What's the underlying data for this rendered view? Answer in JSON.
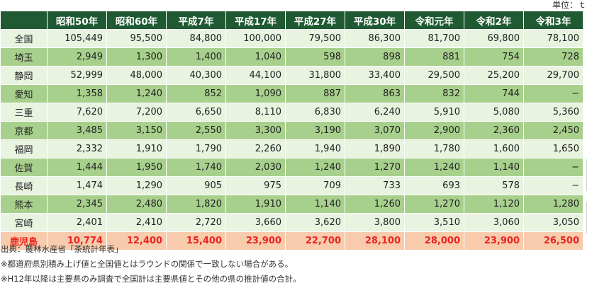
{
  "unit_label": "単位：ｔ",
  "table": {
    "columns": [
      "昭和50年",
      "昭和60年",
      "平成7年",
      "平成17年",
      "平成27年",
      "平成30年",
      "令和元年",
      "令和2年",
      "令和3年"
    ],
    "rows": [
      {
        "name": "全国",
        "values": [
          "105,449",
          "95,500",
          "84,800",
          "100,000",
          "79,500",
          "86,300",
          "81,700",
          "69,800",
          "78,100"
        ]
      },
      {
        "name": "埼玉",
        "values": [
          "2,949",
          "1,300",
          "1,400",
          "1,040",
          "598",
          "898",
          "881",
          "754",
          "728"
        ]
      },
      {
        "name": "静岡",
        "values": [
          "52,999",
          "48,000",
          "40,300",
          "44,100",
          "31,800",
          "33,400",
          "29,500",
          "25,200",
          "29,700"
        ]
      },
      {
        "name": "愛知",
        "values": [
          "1,358",
          "1,240",
          "852",
          "1,090",
          "887",
          "863",
          "832",
          "744",
          "−"
        ]
      },
      {
        "name": "三重",
        "values": [
          "7,620",
          "7,200",
          "6,650",
          "8,110",
          "6,830",
          "6,240",
          "5,910",
          "5,080",
          "5,360"
        ]
      },
      {
        "name": "京都",
        "values": [
          "3,485",
          "3,150",
          "2,550",
          "3,300",
          "3,190",
          "3,070",
          "2,900",
          "2,360",
          "2,450"
        ]
      },
      {
        "name": "福岡",
        "values": [
          "2,332",
          "1,910",
          "1,790",
          "2,260",
          "1,940",
          "1,890",
          "1,780",
          "1,600",
          "1,650"
        ]
      },
      {
        "name": "佐賀",
        "values": [
          "1,444",
          "1,950",
          "1,740",
          "2,030",
          "1,240",
          "1,270",
          "1,240",
          "1,140",
          "−"
        ]
      },
      {
        "name": "長崎",
        "values": [
          "1,474",
          "1,290",
          "905",
          "975",
          "709",
          "733",
          "693",
          "578",
          "−"
        ]
      },
      {
        "name": "熊本",
        "values": [
          "2,345",
          "2,480",
          "1,820",
          "1,910",
          "1,140",
          "1,260",
          "1,270",
          "1,120",
          "1,280"
        ]
      },
      {
        "name": "宮崎",
        "values": [
          "2,401",
          "2,410",
          "2,720",
          "3,660",
          "3,620",
          "3,800",
          "3,510",
          "3,060",
          "3,050"
        ]
      },
      {
        "name": "鹿児島",
        "values": [
          "10,774",
          "12,400",
          "15,400",
          "23,900",
          "22,700",
          "28,100",
          "28,000",
          "23,900",
          "26,500"
        ]
      }
    ]
  },
  "notes": [
    "出典：農林水産省「茶統計年表」",
    "※都道府県別積み上げ値と全国値とはラウンドの関係で一致しない場合がある。",
    "※H12年以降は主要県のみ調査で全国計は主要県値とその他の県の推計値の合計。"
  ],
  "colors": {
    "header_bg": "#1f5a32",
    "row_light": "#e8f3e0",
    "row_dark": "#a8d08d",
    "highlight_bg": "#f8cbad",
    "highlight_text": "#e8251f"
  }
}
